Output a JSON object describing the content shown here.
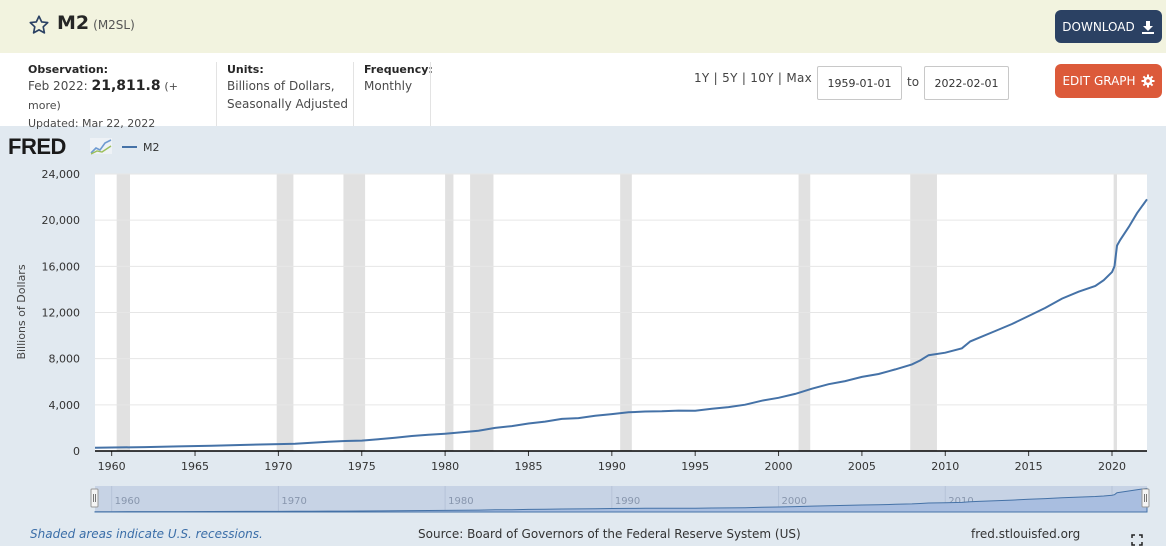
{
  "header": {
    "title": "M2",
    "series_id": "(M2SL)",
    "download_label": "DOWNLOAD"
  },
  "info": {
    "observation_label": "Observation:",
    "observation_date": "Feb 2022:",
    "observation_value": "21,811.8",
    "observation_more": "(+ more)",
    "updated": "Updated: Mar 22, 2022",
    "units_label": "Units:",
    "units_line1": "Billions of Dollars,",
    "units_line2": "Seasonally Adjusted",
    "frequency_label": "Frequency:",
    "frequency_value": "Monthly"
  },
  "controls": {
    "ranges": "1Y | 5Y | 10Y | Max",
    "start_date": "1959-01-01",
    "to_label": "to",
    "end_date": "2022-02-01",
    "edit_label": "EDIT GRAPH"
  },
  "logo_text": "FRED",
  "legend_label": "M2",
  "colors": {
    "line": "#4572a7",
    "recession": "#e1e1e1",
    "navigator_fill": "#a9bee0"
  },
  "chart_data": {
    "type": "line",
    "title": "",
    "xlabel": "",
    "ylabel": "Billions of Dollars",
    "xlim": [
      1959.0,
      2022.1
    ],
    "ylim": [
      0,
      24000
    ],
    "y_ticks": [
      0,
      4000,
      8000,
      12000,
      16000,
      20000,
      24000
    ],
    "y_tick_labels": [
      "0",
      "4,000",
      "8,000",
      "12,000",
      "16,000",
      "20,000",
      "24,000"
    ],
    "x_ticks": [
      1960,
      1965,
      1970,
      1975,
      1980,
      1985,
      1990,
      1995,
      2000,
      2005,
      2010,
      2015,
      2020
    ],
    "x_tick_labels": [
      "1960",
      "1965",
      "1970",
      "1975",
      "1980",
      "1985",
      "1990",
      "1995",
      "2000",
      "2005",
      "2010",
      "2015",
      "2020"
    ],
    "navigator_labels": [
      "1960",
      "1970",
      "1980",
      "1990",
      "2000",
      "2010",
      "2020"
    ],
    "grid": true,
    "legend_position": "top-left",
    "recessions": [
      [
        1960.3,
        1961.1
      ],
      [
        1969.9,
        1970.9
      ],
      [
        1973.9,
        1975.2
      ],
      [
        1980.0,
        1980.5
      ],
      [
        1981.5,
        1982.9
      ],
      [
        1990.5,
        1991.2
      ],
      [
        2001.2,
        2001.9
      ],
      [
        2007.9,
        2009.5
      ],
      [
        2020.1,
        2020.3
      ]
    ],
    "series": [
      {
        "name": "M2",
        "x": [
          1959.0,
          1960.0,
          1962.0,
          1964.0,
          1966.0,
          1968.0,
          1970.0,
          1971.0,
          1972.0,
          1973.0,
          1974.0,
          1975.0,
          1976.0,
          1977.0,
          1978.0,
          1979.0,
          1980.0,
          1981.0,
          1982.0,
          1983.0,
          1984.0,
          1985.0,
          1986.0,
          1987.0,
          1988.0,
          1989.0,
          1990.0,
          1991.0,
          1992.0,
          1993.0,
          1994.0,
          1995.0,
          1996.0,
          1997.0,
          1998.0,
          1999.0,
          2000.0,
          2001.0,
          2002.0,
          2003.0,
          2004.0,
          2005.0,
          2006.0,
          2007.0,
          2008.0,
          2008.5,
          2009.0,
          2010.0,
          2011.0,
          2011.5,
          2012.0,
          2013.0,
          2014.0,
          2015.0,
          2016.0,
          2017.0,
          2018.0,
          2019.0,
          2019.5,
          2020.0,
          2020.15,
          2020.3,
          2020.5,
          2021.0,
          2021.5,
          2022.1
        ],
        "y": [
          290,
          300,
          340,
          400,
          460,
          530,
          600,
          630,
          710,
          800,
          870,
          900,
          1020,
          1150,
          1300,
          1400,
          1500,
          1620,
          1760,
          2000,
          2160,
          2380,
          2550,
          2780,
          2850,
          3050,
          3200,
          3350,
          3420,
          3440,
          3500,
          3490,
          3660,
          3800,
          4010,
          4360,
          4610,
          4950,
          5400,
          5790,
          6060,
          6420,
          6670,
          7070,
          7500,
          7850,
          8300,
          8520,
          8900,
          9500,
          9800,
          10400,
          11000,
          11700,
          12400,
          13200,
          13800,
          14300,
          14800,
          15500,
          16000,
          17800,
          18300,
          19400,
          20600,
          21811.8
        ]
      }
    ]
  },
  "footer": {
    "note": "Shaded areas indicate U.S. recessions.",
    "source": "Source: Board of Governors of the Federal Reserve System (US)",
    "site": "fred.stlouisfed.org"
  }
}
